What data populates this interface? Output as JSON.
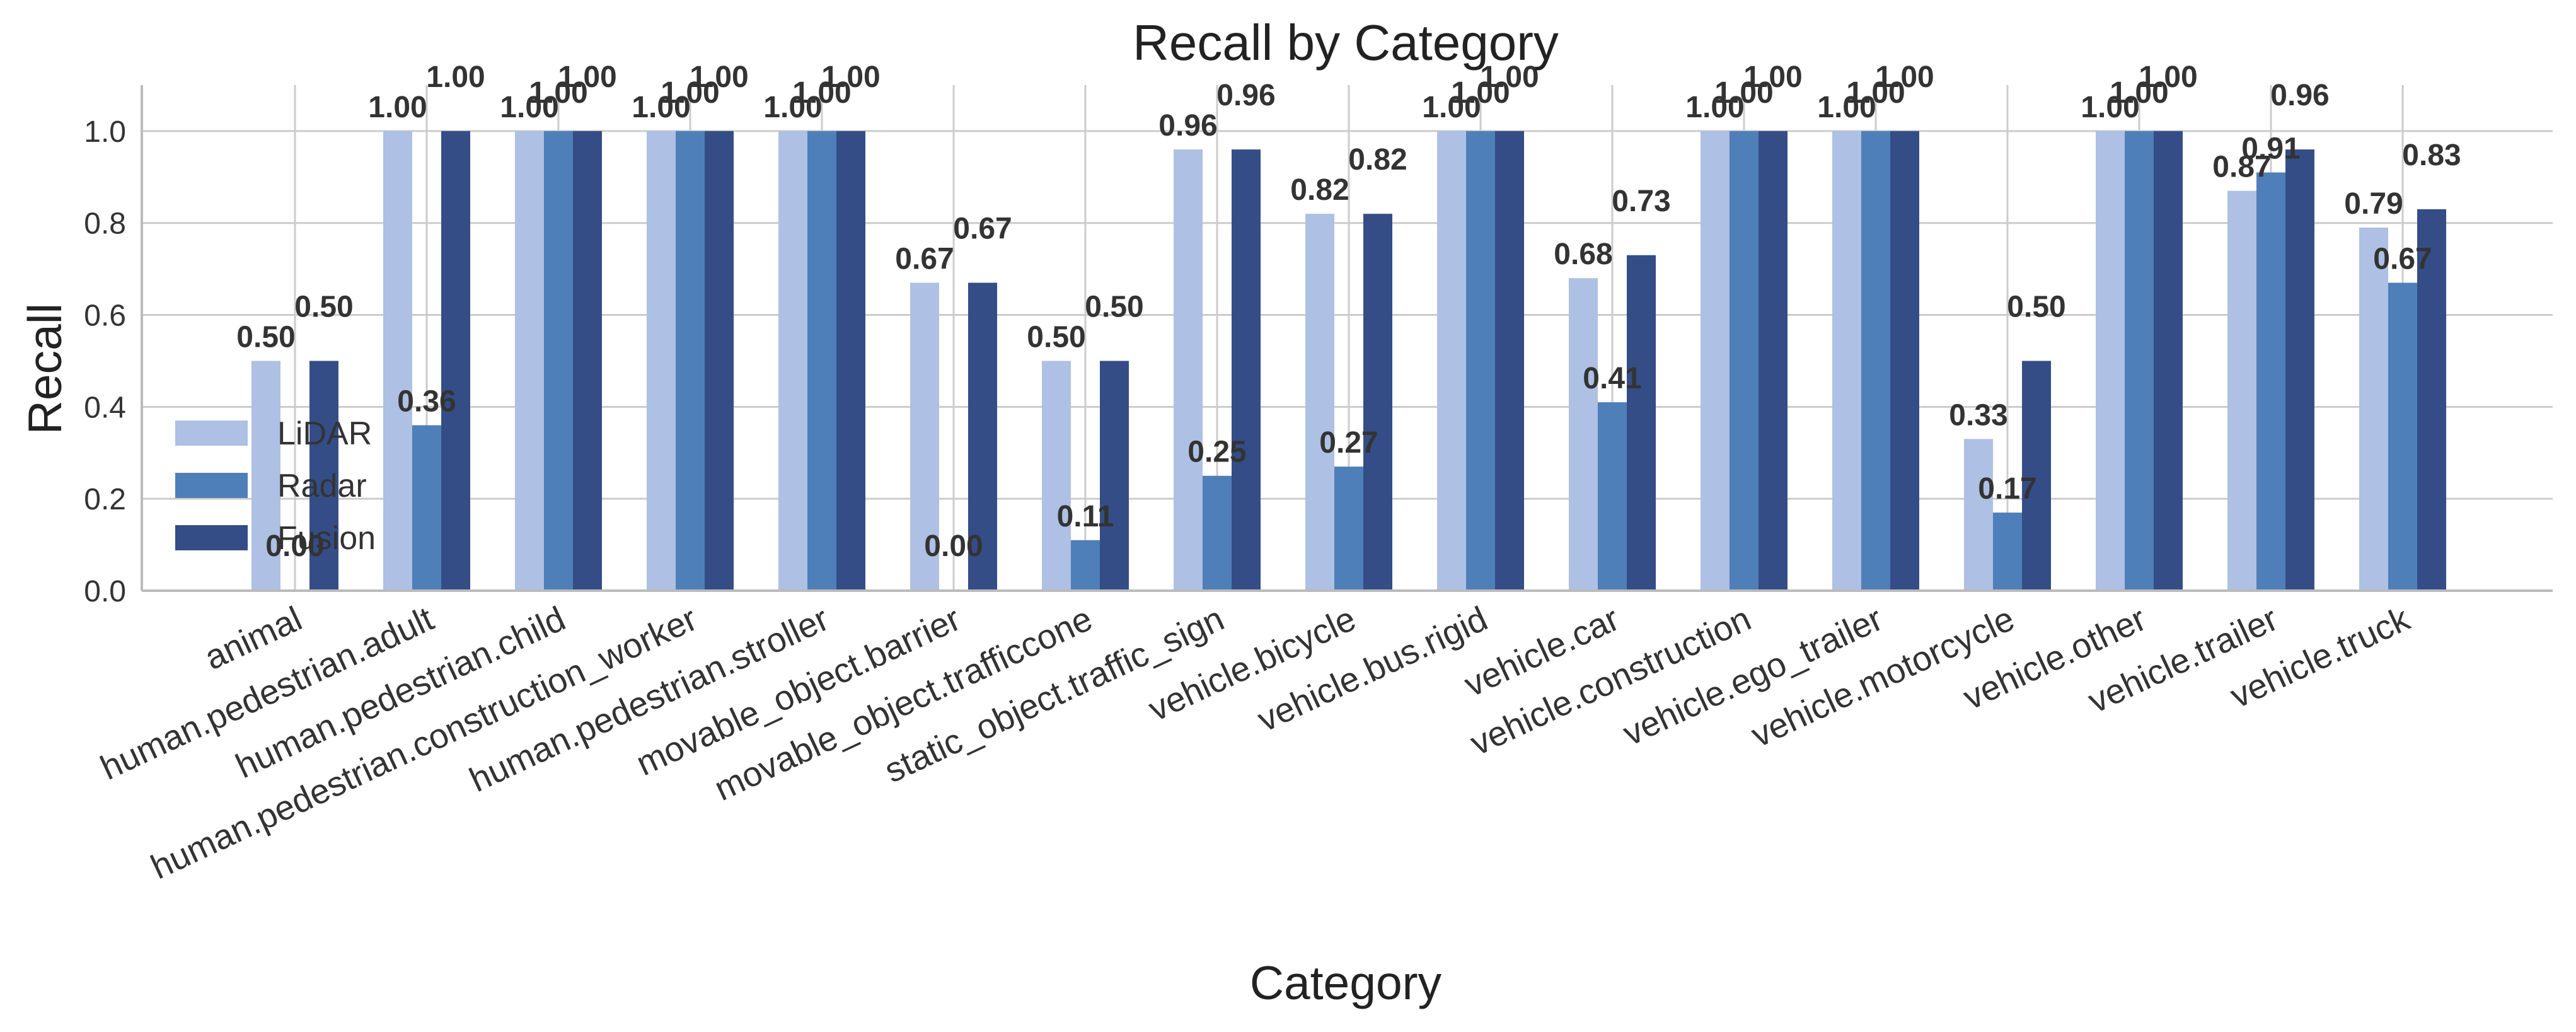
{
  "chart_data": {
    "type": "bar",
    "title": "Recall by Category",
    "xlabel": "Category",
    "ylabel": "Recall",
    "ylim": [
      0,
      1.1
    ],
    "yticks": [
      "0.0",
      "0.2",
      "0.4",
      "0.6",
      "0.8",
      "1.0"
    ],
    "grid": true,
    "legend_position": "center-left",
    "categories": [
      "animal",
      "human.pedestrian.adult",
      "human.pedestrian.child",
      "human.pedestrian.construction_worker",
      "human.pedestrian.stroller",
      "movable_object.barrier",
      "movable_object.trafficcone",
      "static_object.traffic_sign",
      "vehicle.bicycle",
      "vehicle.bus.rigid",
      "vehicle.car",
      "vehicle.construction",
      "vehicle.ego_trailer",
      "vehicle.motorcycle",
      "vehicle.other",
      "vehicle.trailer",
      "vehicle.truck"
    ],
    "series": [
      {
        "name": "LiDAR",
        "color": "#aec0e3",
        "values": [
          0.5,
          1.0,
          1.0,
          1.0,
          1.0,
          0.67,
          0.5,
          0.96,
          0.82,
          1.0,
          0.68,
          1.0,
          1.0,
          0.33,
          1.0,
          0.87,
          0.79
        ],
        "labels": [
          "0.50",
          "1.00",
          "1.00",
          "1.00",
          "1.00",
          "0.67",
          "0.50",
          "0.96",
          "0.82",
          "1.00",
          "0.68",
          "1.00",
          "1.00",
          "0.33",
          "1.00",
          "0.87",
          "0.79"
        ]
      },
      {
        "name": "Radar",
        "color": "#4f7fb8",
        "values": [
          0.0,
          0.36,
          1.0,
          1.0,
          1.0,
          0.0,
          0.11,
          0.25,
          0.27,
          1.0,
          0.41,
          1.0,
          1.0,
          0.17,
          1.0,
          0.91,
          0.67
        ],
        "labels": [
          "0.00",
          "0.36",
          "1.00",
          "1.00",
          "1.00",
          "0.00",
          "0.11",
          "0.25",
          "0.27",
          "1.00",
          "0.41",
          "1.00",
          "1.00",
          "0.17",
          "1.00",
          "0.91",
          "0.67"
        ]
      },
      {
        "name": "Fusion",
        "color": "#344d87",
        "values": [
          0.5,
          1.0,
          1.0,
          1.0,
          1.0,
          0.67,
          0.5,
          0.96,
          0.82,
          1.0,
          0.73,
          1.0,
          1.0,
          0.5,
          1.0,
          0.96,
          0.83
        ],
        "labels": [
          "0.50",
          "1.00",
          "1.00",
          "1.00",
          "1.00",
          "0.67",
          "0.50",
          "0.96",
          "0.82",
          "1.00",
          "0.73",
          "1.00",
          "1.00",
          "0.50",
          "1.00",
          "0.96",
          "0.83"
        ]
      }
    ]
  }
}
